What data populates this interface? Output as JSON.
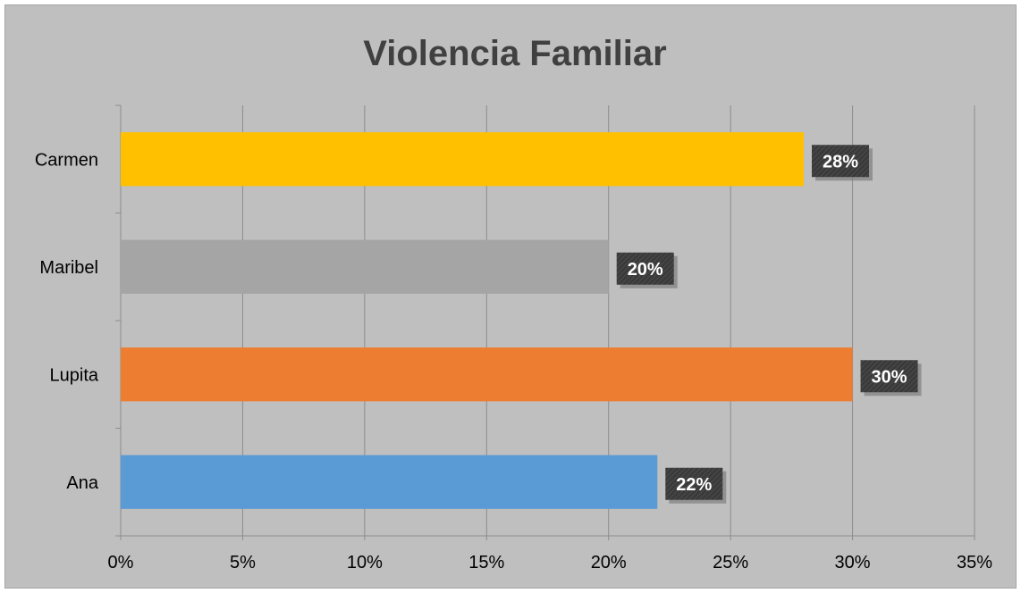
{
  "chart_data": {
    "type": "bar",
    "orientation": "horizontal",
    "title": "Violencia Familiar",
    "xlabel": "",
    "ylabel": "",
    "categories": [
      "Ana",
      "Lupita",
      "Maribel",
      "Carmen"
    ],
    "values": [
      0.22,
      0.3,
      0.2,
      0.28
    ],
    "data_labels": [
      "22%",
      "30%",
      "20%",
      "28%"
    ],
    "bar_colors": [
      "#5b9bd5",
      "#ed7d31",
      "#a5a5a5",
      "#ffc000"
    ],
    "xlim": [
      0,
      0.35
    ],
    "x_ticks": [
      0,
      0.05,
      0.1,
      0.15,
      0.2,
      0.25,
      0.3,
      0.35
    ],
    "x_tick_labels": [
      "0%",
      "5%",
      "10%",
      "15%",
      "20%",
      "25%",
      "30%",
      "35%"
    ],
    "grid": "vertical",
    "legend": "none",
    "background_color": "#bfbfbf",
    "label_box_color": "#404040"
  }
}
